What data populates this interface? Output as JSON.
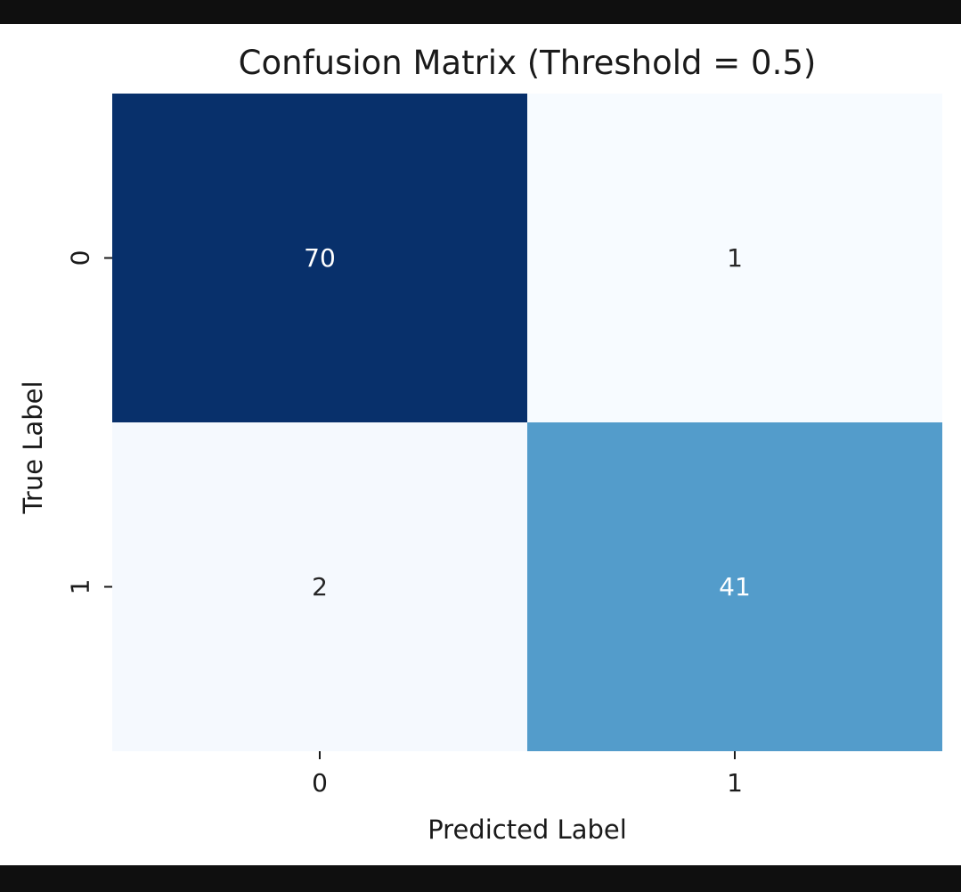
{
  "chart_data": {
    "type": "heatmap",
    "title": "Confusion Matrix (Threshold = 0.5)",
    "xlabel": "Predicted Label",
    "ylabel": "True Label",
    "x_categories": [
      "0",
      "1"
    ],
    "y_categories": [
      "0",
      "1"
    ],
    "values": [
      [
        70,
        1
      ],
      [
        2,
        41
      ]
    ],
    "colormap": "Blues",
    "colorbar": false,
    "colors": {
      "dark_text": "#262626",
      "light_text": "#ffffff",
      "cell_colors": [
        [
          "#08306b",
          "#f7fbff"
        ],
        [
          "#f5f9fe",
          "#539ccb"
        ]
      ]
    }
  }
}
